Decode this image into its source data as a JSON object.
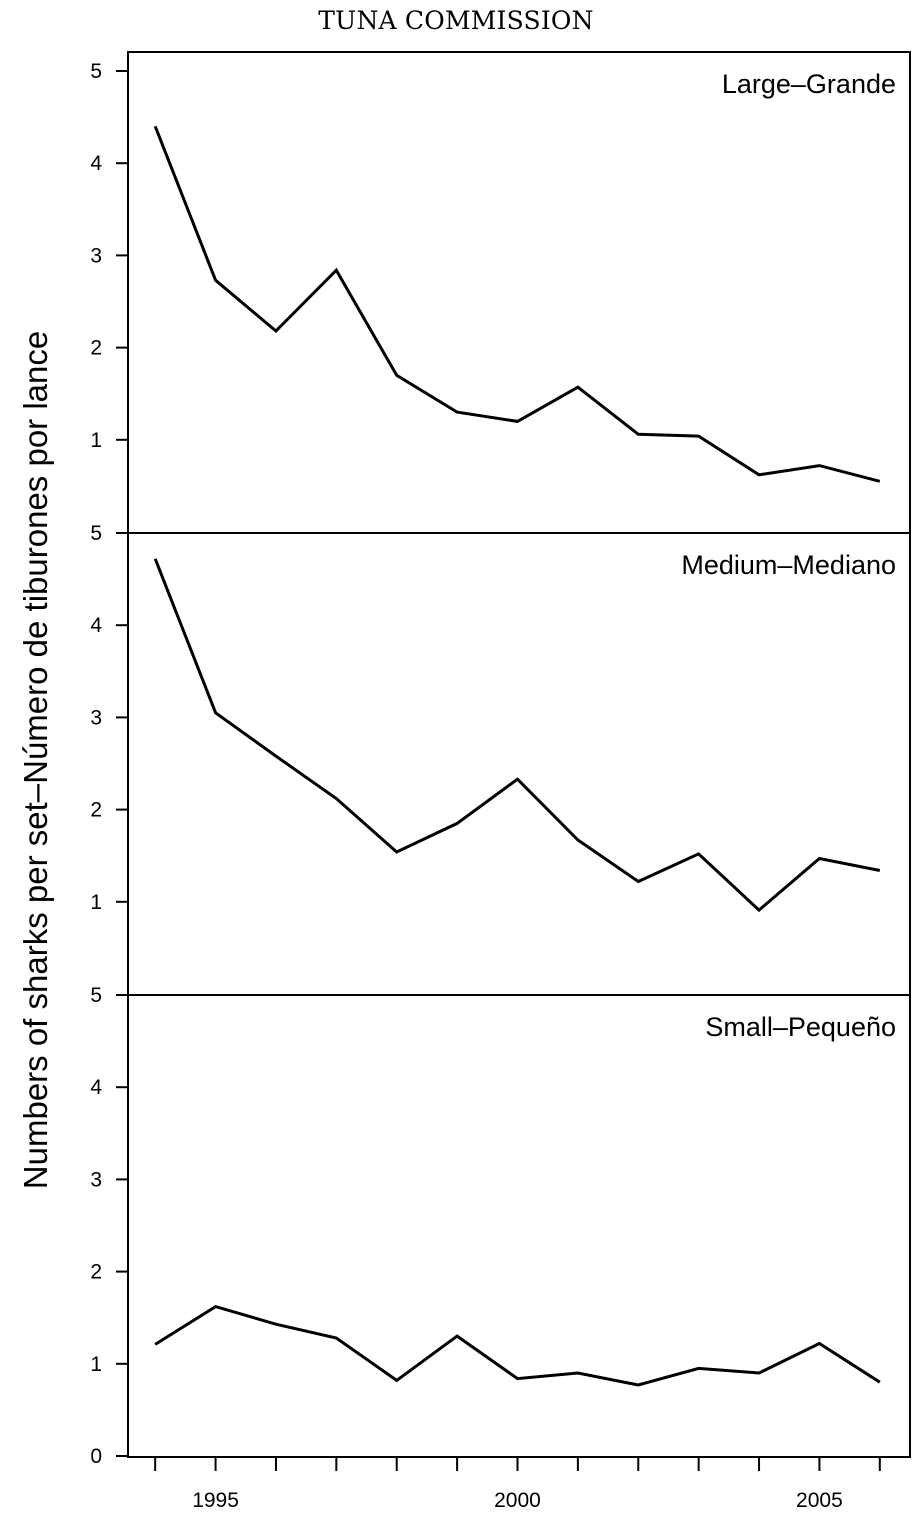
{
  "header": {
    "text": "TUNA COMMISSION"
  },
  "chart_data": {
    "type": "line",
    "ylabel": "Numbers of sharks per set–Número de tiburones por lance",
    "xlabel": "",
    "x_ticks": [
      1994,
      1995,
      1996,
      1997,
      1998,
      1999,
      2000,
      2001,
      2002,
      2003,
      2004,
      2005,
      2006
    ],
    "x_tick_labels": [
      {
        "x": 1995,
        "label": "1995"
      },
      {
        "x": 2000,
        "label": "2000"
      },
      {
        "x": 2005,
        "label": "2005"
      }
    ],
    "xlim": [
      1993.55,
      2006.5
    ],
    "ylim": [
      0,
      5.35
    ],
    "panels": [
      {
        "name": "Large–Grande",
        "y_tick_labels": [
          "5",
          "4",
          "3",
          "2",
          "1"
        ],
        "x": [
          1994,
          1995,
          1996,
          1997,
          1998,
          1999,
          2000,
          2001,
          2002,
          2003,
          2004,
          2005,
          2006
        ],
        "values": [
          4.4,
          2.73,
          2.18,
          2.84,
          1.7,
          1.3,
          1.2,
          1.57,
          1.06,
          1.04,
          0.62,
          0.72,
          0.55
        ]
      },
      {
        "name": "Medium–Mediano",
        "y_tick_labels": [
          "5",
          "4",
          "3",
          "2",
          "1"
        ],
        "x": [
          1994,
          1995,
          1996,
          1997,
          1998,
          1999,
          2000,
          2001,
          2002,
          2003,
          2004,
          2005,
          2006
        ],
        "values": [
          4.72,
          3.05,
          2.58,
          2.12,
          1.54,
          1.85,
          2.33,
          1.67,
          1.22,
          1.52,
          0.91,
          1.47,
          1.34
        ]
      },
      {
        "name": "Small–Pequeño",
        "y_tick_labels": [
          "5",
          "4",
          "3",
          "2",
          "1",
          "0"
        ],
        "x": [
          1994,
          1995,
          1996,
          1997,
          1998,
          1999,
          2000,
          2001,
          2002,
          2003,
          2004,
          2005,
          2006
        ],
        "values": [
          1.21,
          1.62,
          1.43,
          1.28,
          0.82,
          1.3,
          0.84,
          0.9,
          0.77,
          0.95,
          0.9,
          1.22,
          0.8
        ]
      }
    ]
  }
}
